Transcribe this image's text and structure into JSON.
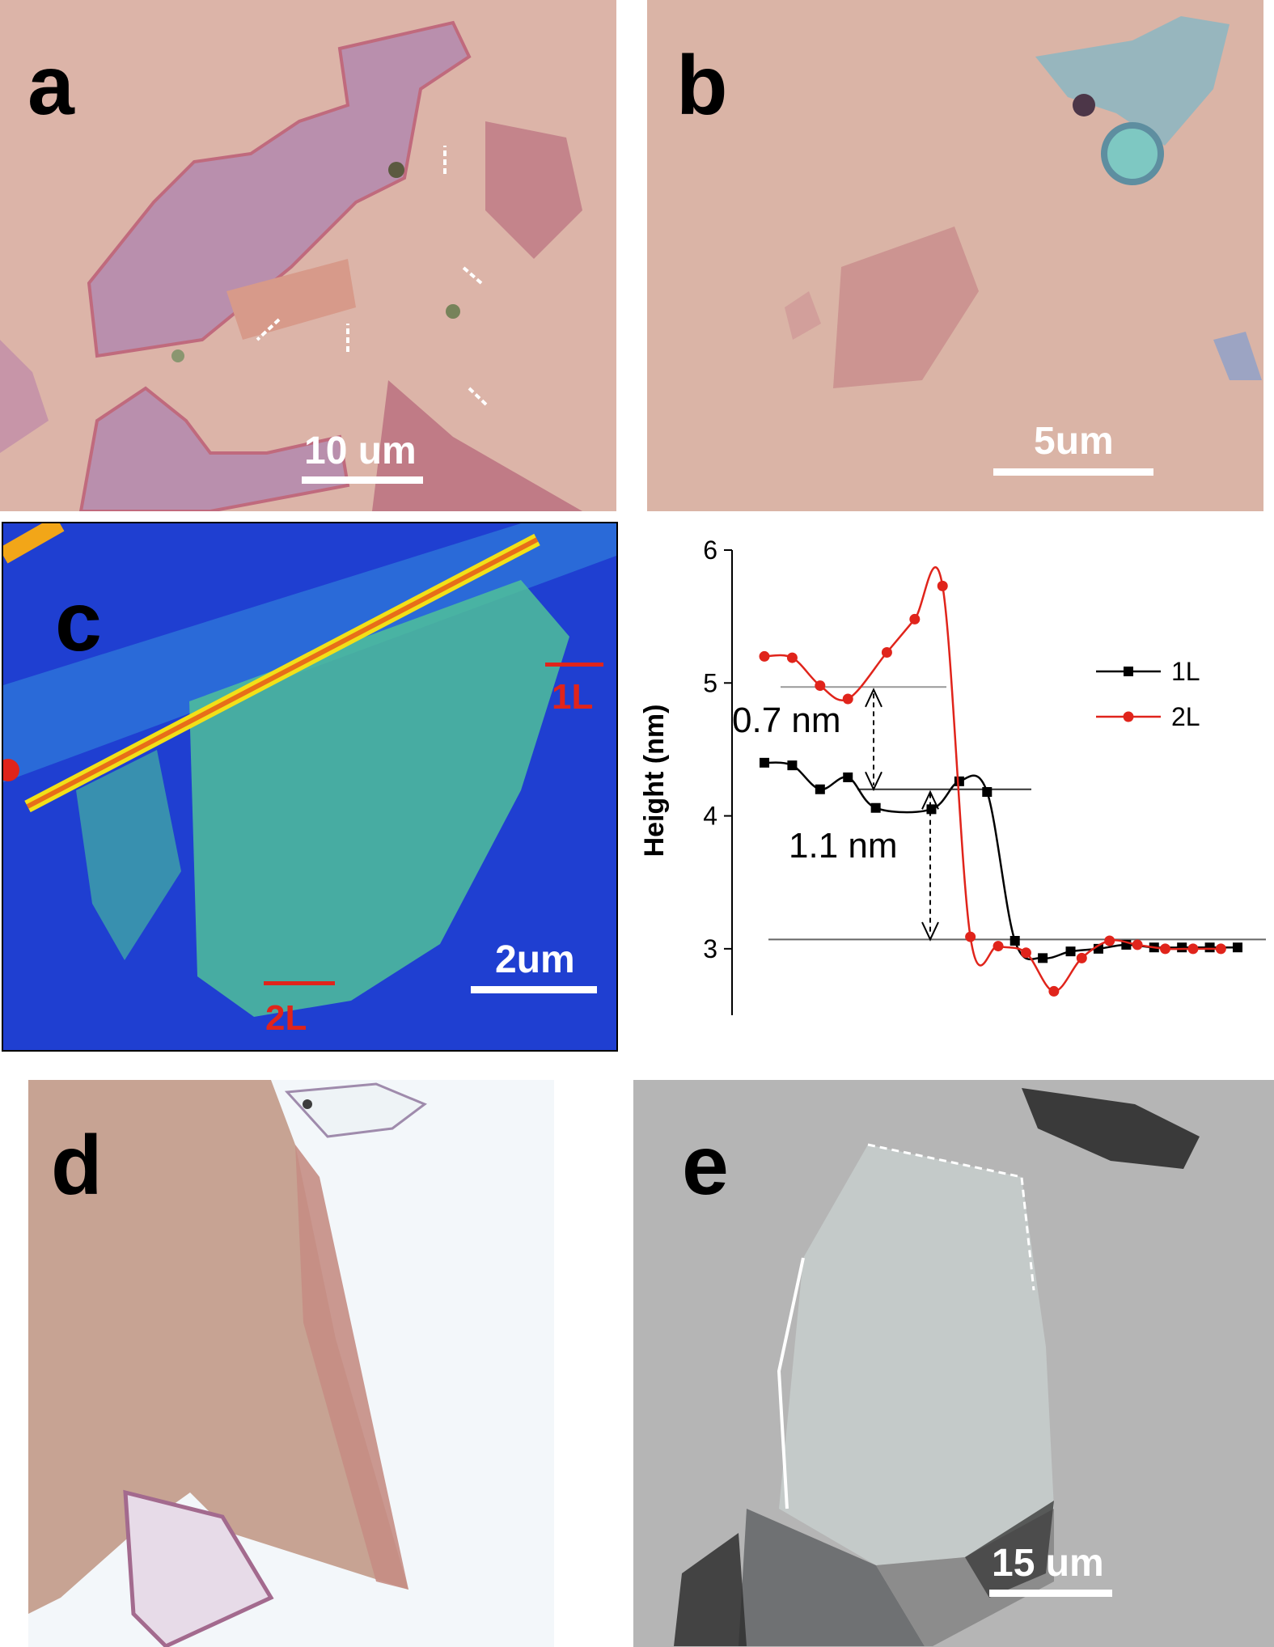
{
  "figure": {
    "panels": {
      "a": {
        "letter": "a",
        "scale_label": "10 um"
      },
      "b": {
        "letter": "b",
        "scale_label": "5um"
      },
      "c": {
        "letter": "c",
        "scale_label": "2um",
        "marker_1": "1L",
        "marker_2": "2L"
      },
      "d": {
        "letter": "d"
      },
      "e": {
        "letter": "e",
        "scale_label": "15 um"
      }
    },
    "colors": {
      "substrate_pink": "#dcb4a8",
      "flake_purple": "#b98fad",
      "afm_blue": "#1f3fd1",
      "afm_green": "#4fbf9a",
      "red_marker": "#e0241b",
      "sem_gray": "#b5b5b5"
    }
  },
  "chart_data": {
    "type": "line",
    "ylabel": "Height (nm)",
    "xlabel": "",
    "ylim": [
      2.5,
      6.0
    ],
    "yticks": [
      "6",
      "5",
      "4",
      "3"
    ],
    "legend_position": "right",
    "series": [
      {
        "name": "1L",
        "color": "#000000",
        "marker": "square",
        "x": [
          0.0,
          0.05,
          0.1,
          0.15,
          0.2,
          0.3,
          0.35,
          0.4,
          0.45,
          0.5,
          0.55,
          0.6,
          0.65,
          0.7,
          0.75,
          0.8,
          0.85
        ],
        "y": [
          4.4,
          4.38,
          4.2,
          4.29,
          4.06,
          4.05,
          4.26,
          4.18,
          3.06,
          2.93,
          2.98,
          3.0,
          3.03,
          3.01,
          3.01,
          3.01,
          3.01
        ]
      },
      {
        "name": "2L",
        "color": "#e0241b",
        "marker": "circle",
        "x": [
          0.0,
          0.05,
          0.1,
          0.15,
          0.22,
          0.27,
          0.32,
          0.37,
          0.42,
          0.47,
          0.52,
          0.57,
          0.62,
          0.67,
          0.72,
          0.77,
          0.82
        ],
        "y": [
          5.2,
          5.19,
          4.98,
          4.88,
          5.23,
          5.48,
          5.73,
          3.09,
          3.02,
          2.97,
          2.68,
          2.93,
          3.06,
          3.03,
          3.0,
          3.0,
          3.0
        ]
      }
    ],
    "annotations": [
      {
        "text": "0.7 nm"
      },
      {
        "text": "1.1 nm"
      }
    ]
  }
}
